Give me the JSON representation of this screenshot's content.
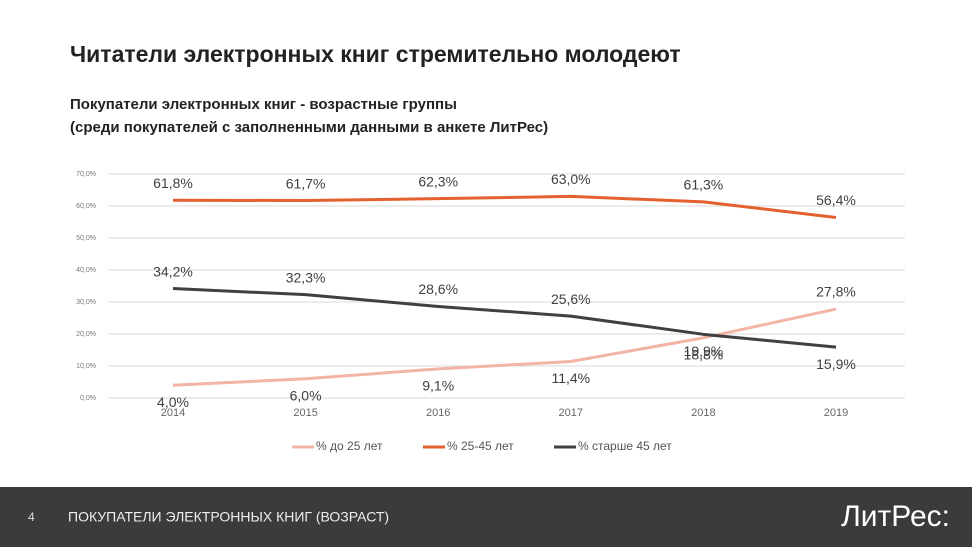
{
  "chart_data": {
    "type": "line",
    "title": "Читатели электронных книг стремительно молодеют",
    "subtitle": [
      "Покупатели электронных книг - возрастные группы",
      "(среди покупателей с заполненными данными в анкете ЛитРес)"
    ],
    "categories": [
      "2014",
      "2015",
      "2016",
      "2017",
      "2018",
      "2019"
    ],
    "series": [
      {
        "name": "% до 25 лет",
        "color": "#f2b4a4",
        "values": [
          4.0,
          6.0,
          9.1,
          11.4,
          18.8,
          27.8
        ],
        "value_labels": [
          "4,0%",
          "6,0%",
          "9,1%",
          "11,4%",
          "18,8%",
          "27,8%"
        ]
      },
      {
        "name": "% 25-45 лет",
        "color": "#e5602f",
        "values": [
          61.8,
          61.7,
          62.3,
          63.0,
          61.3,
          56.4
        ],
        "value_labels": [
          "61,8%",
          "61,7%",
          "62,3%",
          "63,0%",
          "61,3%",
          "56,4%"
        ]
      },
      {
        "name": "% старше 45 лет",
        "color": "#404040",
        "values": [
          34.2,
          32.3,
          28.6,
          25.6,
          19.9,
          15.9
        ],
        "value_labels": [
          "34,2%",
          "32,3%",
          "28,6%",
          "25,6%",
          "19,9%",
          "15,9%"
        ]
      }
    ],
    "ylim": [
      0,
      70
    ],
    "yticks": [
      {
        "value": 0,
        "label": "0,0%"
      },
      {
        "value": 10,
        "label": "10,0%"
      },
      {
        "value": 20,
        "label": "20,0%"
      },
      {
        "value": 30,
        "label": "30,0%"
      },
      {
        "value": 40,
        "label": "40,0%"
      },
      {
        "value": 50,
        "label": "50,0%"
      },
      {
        "value": 60,
        "label": "60,0%"
      },
      {
        "value": 70,
        "label": "70,0%"
      }
    ],
    "grid": true
  },
  "footer": {
    "page": "4",
    "text": "ПОКУПАТЕЛИ ЭЛЕКТРОННЫХ КНИГ (ВОЗРАСТ)",
    "logo": "ЛитРес:"
  }
}
